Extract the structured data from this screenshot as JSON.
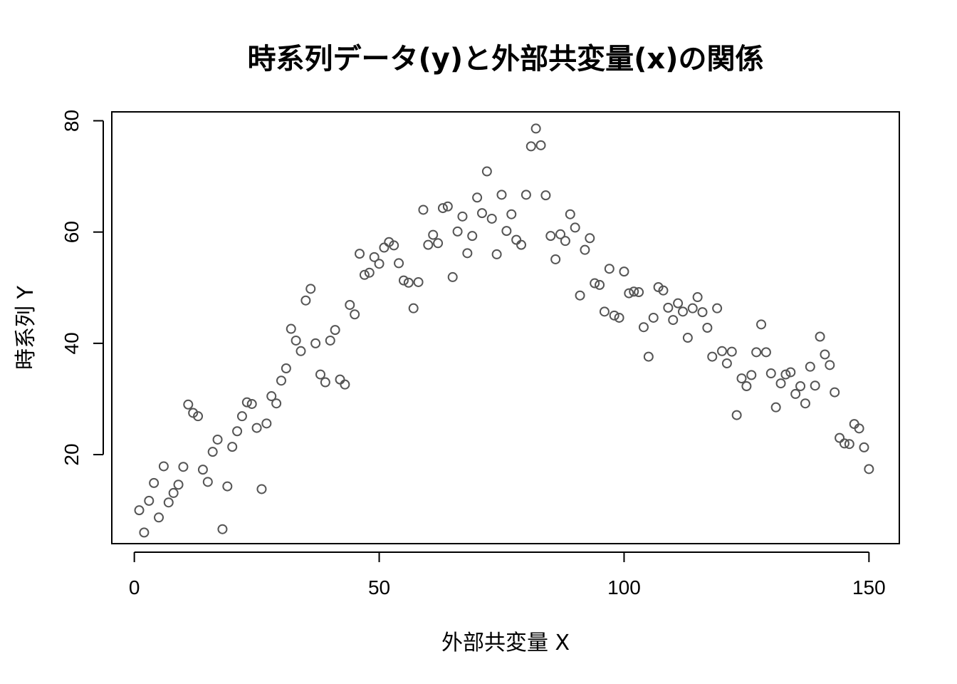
{
  "chart_data": {
    "type": "scatter",
    "title": "時系列データ(y)と外部共変量(x)の関係",
    "xlabel": "外部共変量 X",
    "ylabel": "時系列 Y",
    "xlim": [
      -4.6,
      156.2
    ],
    "ylim": [
      4,
      81.6
    ],
    "xticks": [
      0,
      50,
      100,
      150
    ],
    "yticks": [
      20,
      40,
      60,
      80
    ],
    "grid": false,
    "point_color": "#555555",
    "points": [
      [
        1,
        10.0
      ],
      [
        2,
        6.0
      ],
      [
        3,
        11.7
      ],
      [
        4,
        14.9
      ],
      [
        5,
        8.7
      ],
      [
        6,
        17.9
      ],
      [
        7,
        11.4
      ],
      [
        8,
        13.1
      ],
      [
        9,
        14.6
      ],
      [
        10,
        17.8
      ],
      [
        11,
        29.0
      ],
      [
        12,
        27.5
      ],
      [
        13,
        26.9
      ],
      [
        14,
        17.3
      ],
      [
        15,
        15.1
      ],
      [
        16,
        20.5
      ],
      [
        17,
        22.7
      ],
      [
        18,
        6.6
      ],
      [
        19,
        14.3
      ],
      [
        20,
        21.4
      ],
      [
        21,
        24.2
      ],
      [
        22,
        26.9
      ],
      [
        23,
        29.4
      ],
      [
        24,
        29.1
      ],
      [
        25,
        24.8
      ],
      [
        26,
        13.8
      ],
      [
        27,
        25.6
      ],
      [
        28,
        30.5
      ],
      [
        29,
        29.2
      ],
      [
        30,
        33.3
      ],
      [
        31,
        35.5
      ],
      [
        32,
        42.6
      ],
      [
        33,
        40.5
      ],
      [
        34,
        38.6
      ],
      [
        35,
        47.7
      ],
      [
        36,
        49.8
      ],
      [
        37,
        40.0
      ],
      [
        38,
        34.4
      ],
      [
        39,
        33.0
      ],
      [
        40,
        40.5
      ],
      [
        41,
        42.4
      ],
      [
        42,
        33.5
      ],
      [
        43,
        32.6
      ],
      [
        44,
        46.9
      ],
      [
        45,
        45.2
      ],
      [
        46,
        56.1
      ],
      [
        47,
        52.3
      ],
      [
        48,
        52.7
      ],
      [
        49,
        55.5
      ],
      [
        50,
        54.3
      ],
      [
        51,
        57.2
      ],
      [
        52,
        58.2
      ],
      [
        53,
        57.6
      ],
      [
        54,
        54.4
      ],
      [
        55,
        51.3
      ],
      [
        56,
        50.9
      ],
      [
        57,
        46.3
      ],
      [
        58,
        51.0
      ],
      [
        59,
        64.0
      ],
      [
        60,
        57.7
      ],
      [
        61,
        59.5
      ],
      [
        62,
        58.0
      ],
      [
        63,
        64.3
      ],
      [
        64,
        64.6
      ],
      [
        65,
        51.9
      ],
      [
        66,
        60.1
      ],
      [
        67,
        62.8
      ],
      [
        68,
        56.2
      ],
      [
        69,
        59.3
      ],
      [
        70,
        66.2
      ],
      [
        71,
        63.4
      ],
      [
        72,
        70.9
      ],
      [
        73,
        62.4
      ],
      [
        74,
        56.0
      ],
      [
        75,
        66.7
      ],
      [
        76,
        60.2
      ],
      [
        77,
        63.2
      ],
      [
        78,
        58.6
      ],
      [
        79,
        57.7
      ],
      [
        80,
        66.7
      ],
      [
        81,
        75.4
      ],
      [
        82,
        78.6
      ],
      [
        83,
        75.6
      ],
      [
        84,
        66.6
      ],
      [
        85,
        59.3
      ],
      [
        86,
        55.1
      ],
      [
        87,
        59.6
      ],
      [
        88,
        58.4
      ],
      [
        89,
        63.2
      ],
      [
        90,
        60.8
      ],
      [
        91,
        48.6
      ],
      [
        92,
        56.8
      ],
      [
        93,
        58.9
      ],
      [
        94,
        50.8
      ],
      [
        95,
        50.5
      ],
      [
        96,
        45.7
      ],
      [
        97,
        53.4
      ],
      [
        98,
        45.0
      ],
      [
        99,
        44.6
      ],
      [
        100,
        52.9
      ],
      [
        101,
        49.0
      ],
      [
        102,
        49.3
      ],
      [
        103,
        49.2
      ],
      [
        104,
        42.9
      ],
      [
        105,
        37.6
      ],
      [
        106,
        44.6
      ],
      [
        107,
        50.1
      ],
      [
        108,
        49.5
      ],
      [
        109,
        46.4
      ],
      [
        110,
        44.2
      ],
      [
        111,
        47.2
      ],
      [
        112,
        45.7
      ],
      [
        113,
        41.0
      ],
      [
        114,
        46.3
      ],
      [
        115,
        48.3
      ],
      [
        116,
        45.6
      ],
      [
        117,
        42.8
      ],
      [
        118,
        37.6
      ],
      [
        119,
        46.3
      ],
      [
        120,
        38.6
      ],
      [
        121,
        36.4
      ],
      [
        122,
        38.5
      ],
      [
        123,
        27.1
      ],
      [
        124,
        33.7
      ],
      [
        125,
        32.3
      ],
      [
        126,
        34.3
      ],
      [
        127,
        38.4
      ],
      [
        128,
        43.4
      ],
      [
        129,
        38.4
      ],
      [
        130,
        34.6
      ],
      [
        131,
        28.5
      ],
      [
        132,
        32.8
      ],
      [
        133,
        34.4
      ],
      [
        134,
        34.8
      ],
      [
        135,
        30.9
      ],
      [
        136,
        32.3
      ],
      [
        137,
        29.2
      ],
      [
        138,
        35.8
      ],
      [
        139,
        32.4
      ],
      [
        140,
        41.2
      ],
      [
        141,
        38.0
      ],
      [
        142,
        36.1
      ],
      [
        143,
        31.2
      ],
      [
        144,
        23.0
      ],
      [
        145,
        22.0
      ],
      [
        146,
        21.9
      ],
      [
        147,
        25.5
      ],
      [
        148,
        24.7
      ],
      [
        149,
        21.3
      ],
      [
        150,
        17.4
      ]
    ]
  }
}
